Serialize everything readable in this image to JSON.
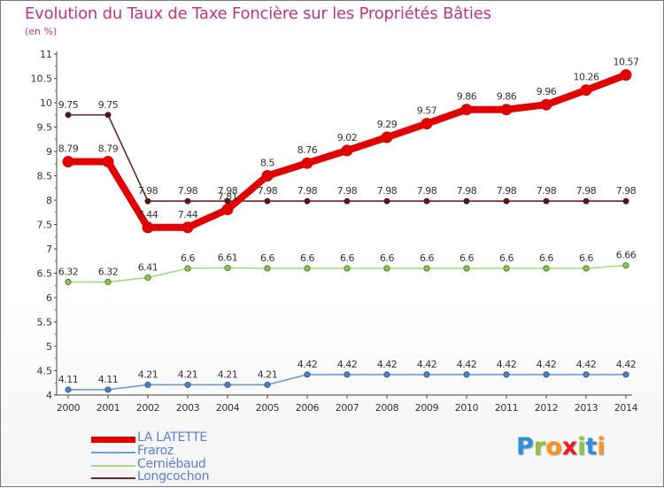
{
  "header": {
    "title": "Evolution du Taux de Taxe Foncière sur les Propriétés Bâties",
    "unit": "(en %)"
  },
  "chart_data": {
    "type": "line",
    "title": "Evolution du Taux de Taxe Foncière sur les Propriétés Bâties",
    "ylabel": "(en %)",
    "xlabel": "",
    "categories": [
      "2000",
      "2001",
      "2002",
      "2003",
      "2004",
      "2005",
      "2006",
      "2007",
      "2008",
      "2009",
      "2010",
      "2011",
      "2012",
      "2013",
      "2014"
    ],
    "ylim": [
      4,
      11
    ],
    "yticks": [
      4,
      4.5,
      5,
      5.5,
      6,
      6.5,
      7,
      7.5,
      8,
      8.5,
      9,
      9.5,
      10,
      10.5,
      11
    ],
    "ytick_labels": [
      "4",
      "4.5",
      "5",
      "5.5",
      "6",
      "6.5",
      "7",
      "7.5",
      "8",
      "8.5",
      "9",
      "9.5",
      "10",
      "10.5",
      "11"
    ],
    "grid": false,
    "legend": "bottom-left",
    "series": [
      {
        "name": "Longcochon",
        "color": "#6e2424",
        "marker_color": "#5a1515",
        "values": [
          9.75,
          9.75,
          7.98,
          7.98,
          7.98,
          7.98,
          7.98,
          7.98,
          7.98,
          7.98,
          7.98,
          7.98,
          7.98,
          7.98,
          7.98
        ],
        "labels": [
          "9.75",
          "9.75",
          "7.98",
          "7.98",
          "7.98",
          "7.98",
          "7.98",
          "7.98",
          "7.98",
          "7.98",
          "7.98",
          "7.98",
          "7.98",
          "7.98",
          "7.98"
        ]
      },
      {
        "name": "Cerniébaud",
        "color": "#a8d880",
        "marker_color": "#7fcf3f",
        "values": [
          6.32,
          6.32,
          6.41,
          6.6,
          6.61,
          6.6,
          6.6,
          6.6,
          6.6,
          6.6,
          6.6,
          6.6,
          6.6,
          6.6,
          6.66
        ],
        "labels": [
          "6.32",
          "6.32",
          "6.41",
          "6.6",
          "6.61",
          "6.6",
          "6.6",
          "6.6",
          "6.6",
          "6.6",
          "6.6",
          "6.6",
          "6.6",
          "6.6",
          "6.66"
        ]
      },
      {
        "name": "Fraroz",
        "color": "#6d9cd0",
        "marker_color": "#3f86cf",
        "values": [
          4.11,
          4.11,
          4.21,
          4.21,
          4.21,
          4.21,
          4.42,
          4.42,
          4.42,
          4.42,
          4.42,
          4.42,
          4.42,
          4.42,
          4.42
        ],
        "labels": [
          "4.11",
          "4.11",
          "4.21",
          "4.21",
          "4.21",
          "4.21",
          "4.42",
          "4.42",
          "4.42",
          "4.42",
          "4.42",
          "4.42",
          "4.42",
          "4.42",
          "4.42"
        ]
      },
      {
        "name": "LA LATETTE",
        "color": "#e00000",
        "marker_color": "#e00000",
        "values": [
          8.79,
          8.79,
          7.44,
          7.44,
          7.81,
          8.5,
          8.76,
          9.02,
          9.29,
          9.57,
          9.86,
          9.86,
          9.96,
          10.26,
          10.57
        ],
        "labels": [
          "8.79",
          "8.79",
          "7.44",
          "7.44",
          "7.81",
          "8.5",
          "8.76",
          "9.02",
          "9.29",
          "9.57",
          "9.86",
          "9.86",
          "9.96",
          "10.26",
          "10.57"
        ]
      }
    ]
  },
  "legend": {
    "items": [
      {
        "label": "LA LATETTE",
        "color": "#e00000"
      },
      {
        "label": "Fraroz",
        "color": "#6d9cd0"
      },
      {
        "label": "Cerniébaud",
        "color": "#a8d880"
      },
      {
        "label": "Longcochon",
        "color": "#6e2424"
      }
    ]
  },
  "brand": {
    "letters": [
      "P",
      "r",
      "o",
      "x",
      "i",
      "t",
      "i"
    ],
    "colors": [
      "#2f8fd8",
      "#8dc63f",
      "#f7941d",
      "#ec1c24",
      "#8dc63f",
      "#2f8fd8",
      "#f7941d"
    ]
  }
}
